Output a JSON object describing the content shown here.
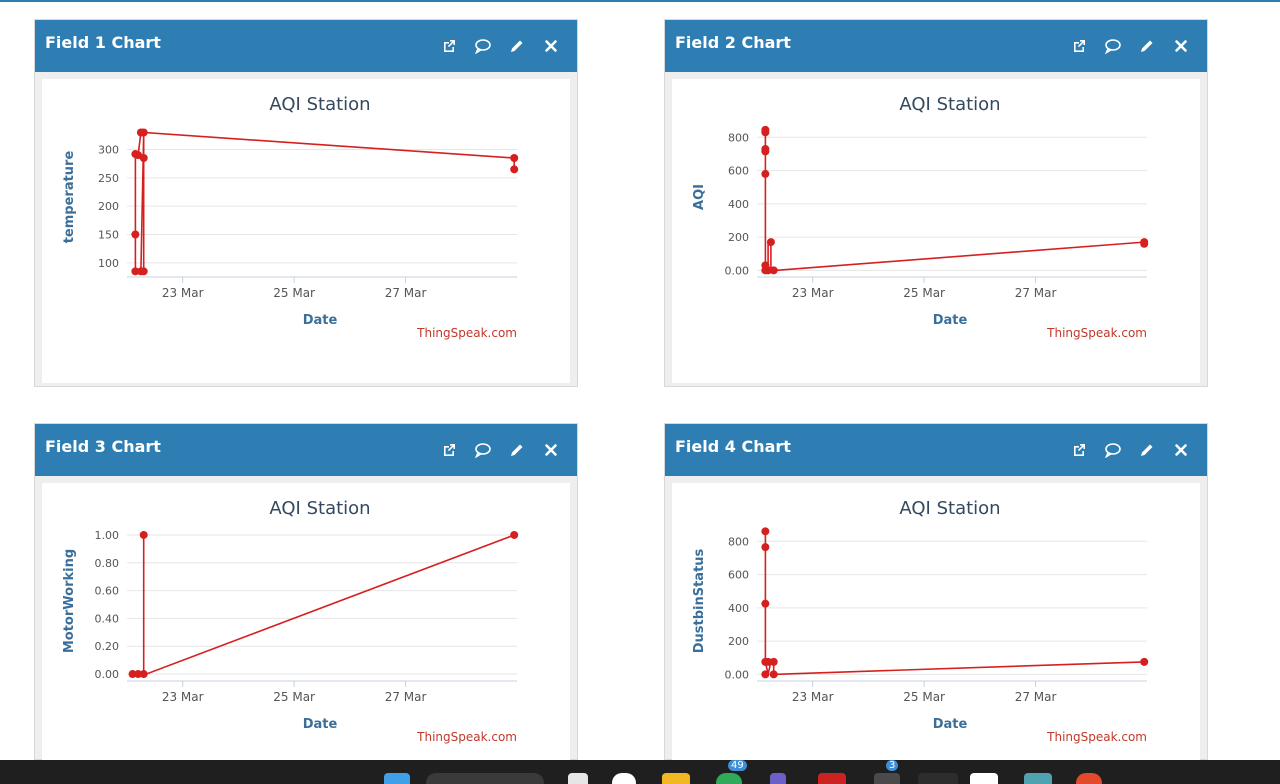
{
  "charts": [
    {
      "header": "Field 1 Chart",
      "chart_data": {
        "type": "line",
        "title": "AQI Station",
        "xlabel": "Date",
        "ylabel": "temperature",
        "credit": "ThingSpeak.com",
        "x_tick_labels": [
          "23 Mar",
          "25 Mar",
          "27 Mar"
        ],
        "x_tick_days": [
          23,
          25,
          27
        ],
        "xlim": [
          22,
          29
        ],
        "y_ticks": [
          100,
          150,
          200,
          250,
          300
        ],
        "y_tick_labels": [
          "100",
          "150",
          "200",
          "250",
          "300"
        ],
        "ylim": [
          75,
          345
        ],
        "color": "#d62020",
        "points": [
          [
            22.15,
            85
          ],
          [
            22.15,
            150
          ],
          [
            22.15,
            292
          ],
          [
            22.2,
            290
          ],
          [
            22.25,
            330
          ],
          [
            22.3,
            330
          ],
          [
            22.3,
            288
          ],
          [
            22.3,
            285
          ],
          [
            22.3,
            85
          ],
          [
            22.25,
            85
          ],
          [
            22.3,
            330
          ],
          [
            28.95,
            285
          ],
          [
            28.95,
            265
          ]
        ],
        "markers": [
          [
            22.15,
            85
          ],
          [
            22.15,
            150
          ],
          [
            22.15,
            292
          ],
          [
            22.2,
            290
          ],
          [
            22.25,
            330
          ],
          [
            22.3,
            330
          ],
          [
            22.3,
            285
          ],
          [
            22.25,
            85
          ],
          [
            22.3,
            85
          ],
          [
            28.95,
            285
          ],
          [
            28.95,
            265
          ]
        ]
      }
    },
    {
      "header": "Field 2 Chart",
      "chart_data": {
        "type": "line",
        "title": "AQI Station",
        "xlabel": "Date",
        "ylabel": "AQI",
        "credit": "ThingSpeak.com",
        "x_tick_labels": [
          "23 Mar",
          "25 Mar",
          "27 Mar"
        ],
        "x_tick_days": [
          23,
          25,
          27
        ],
        "xlim": [
          22,
          29
        ],
        "y_ticks": [
          0,
          200,
          400,
          600,
          800
        ],
        "y_tick_labels": [
          "0.00",
          "200",
          "400",
          "600",
          "800"
        ],
        "ylim": [
          -40,
          880
        ],
        "color": "#d62020",
        "points": [
          [
            22.15,
            845
          ],
          [
            22.15,
            830
          ],
          [
            22.15,
            730
          ],
          [
            22.15,
            715
          ],
          [
            22.15,
            580
          ],
          [
            22.15,
            30
          ],
          [
            22.2,
            0
          ],
          [
            22.2,
            170
          ],
          [
            22.25,
            170
          ],
          [
            22.25,
            0
          ],
          [
            22.3,
            0
          ],
          [
            22.35,
            0
          ],
          [
            28.95,
            170
          ],
          [
            28.95,
            160
          ]
        ],
        "markers": [
          [
            22.15,
            845
          ],
          [
            22.15,
            830
          ],
          [
            22.15,
            730
          ],
          [
            22.15,
            715
          ],
          [
            22.15,
            580
          ],
          [
            22.15,
            30
          ],
          [
            22.2,
            0
          ],
          [
            22.25,
            170
          ],
          [
            22.15,
            0
          ],
          [
            22.3,
            0
          ],
          [
            28.95,
            170
          ],
          [
            28.95,
            160
          ]
        ]
      }
    },
    {
      "header": "Field 3 Chart",
      "chart_data": {
        "type": "line",
        "title": "AQI Station",
        "xlabel": "Date",
        "ylabel": "MotorWorking",
        "credit": "ThingSpeak.com",
        "x_tick_labels": [
          "23 Mar",
          "25 Mar",
          "27 Mar"
        ],
        "x_tick_days": [
          23,
          25,
          27
        ],
        "xlim": [
          22,
          29
        ],
        "y_ticks": [
          0,
          0.2,
          0.4,
          0.6,
          0.8,
          1.0
        ],
        "y_tick_labels": [
          "0.00",
          "0.20",
          "0.40",
          "0.60",
          "0.80",
          "1.00"
        ],
        "ylim": [
          -0.05,
          1.05
        ],
        "color": "#d62020",
        "points": [
          [
            22.1,
            0
          ],
          [
            22.3,
            0
          ],
          [
            22.3,
            1
          ],
          [
            22.3,
            0
          ],
          [
            22.35,
            0
          ],
          [
            28.95,
            1
          ]
        ],
        "markers": [
          [
            22.1,
            0
          ],
          [
            22.2,
            0
          ],
          [
            22.3,
            0
          ],
          [
            22.3,
            1
          ],
          [
            28.95,
            1
          ]
        ]
      }
    },
    {
      "header": "Field 4 Chart",
      "chart_data": {
        "type": "line",
        "title": "AQI Station",
        "xlabel": "Date",
        "ylabel": "DustbinStatus",
        "credit": "ThingSpeak.com",
        "x_tick_labels": [
          "23 Mar",
          "25 Mar",
          "27 Mar"
        ],
        "x_tick_days": [
          23,
          25,
          27
        ],
        "xlim": [
          22,
          29
        ],
        "y_ticks": [
          0,
          200,
          400,
          600,
          800
        ],
        "y_tick_labels": [
          "0.00",
          "200",
          "400",
          "600",
          "800"
        ],
        "ylim": [
          -40,
          880
        ],
        "color": "#d62020",
        "points": [
          [
            22.15,
            860
          ],
          [
            22.15,
            765
          ],
          [
            22.15,
            425
          ],
          [
            22.15,
            75
          ],
          [
            22.2,
            0
          ],
          [
            22.25,
            75
          ],
          [
            22.3,
            75
          ],
          [
            22.3,
            0
          ],
          [
            22.35,
            0
          ],
          [
            28.95,
            75
          ]
        ],
        "markers": [
          [
            22.15,
            860
          ],
          [
            22.15,
            765
          ],
          [
            22.15,
            425
          ],
          [
            22.15,
            75
          ],
          [
            22.2,
            75
          ],
          [
            22.3,
            75
          ],
          [
            22.15,
            0
          ],
          [
            22.3,
            0
          ],
          [
            28.95,
            75
          ]
        ]
      }
    }
  ],
  "panel_action_icons": [
    "external-link-icon",
    "comment-icon",
    "pencil-icon",
    "close-icon"
  ],
  "taskbar": {
    "badges": [
      "49",
      "3"
    ]
  }
}
